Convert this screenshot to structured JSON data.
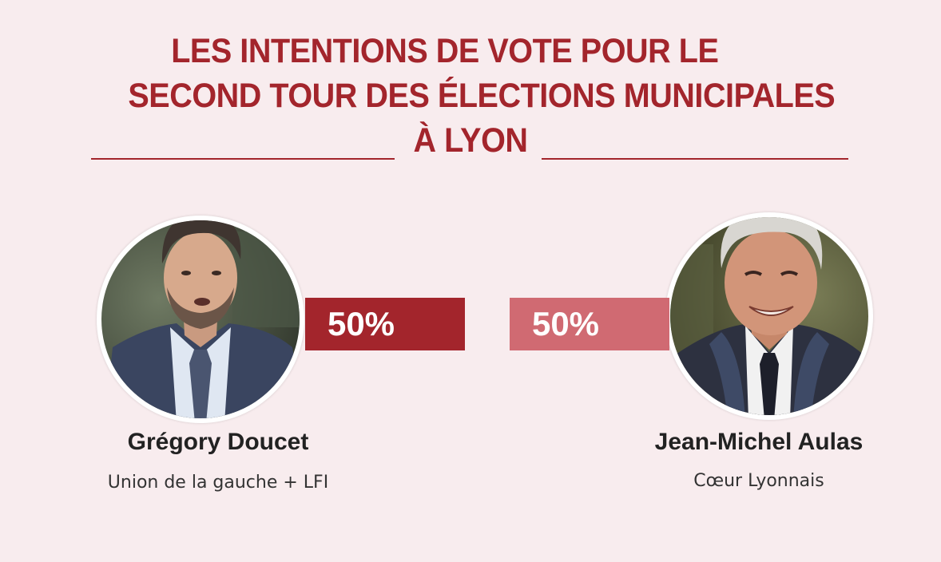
{
  "title": {
    "line1": "LES INTENTIONS DE VOTE POUR LE",
    "line2": "SECOND TOUR DES ÉLECTIONS MUNICIPALES",
    "line3": "À LYON"
  },
  "colors": {
    "background": "#f8ecee",
    "accent": "#a3252c",
    "bar_left": "#a3252c",
    "bar_right": "#d06a72"
  },
  "candidates": [
    {
      "name": "Grégory Doucet",
      "party": "Union de la gauche + LFI",
      "percent_label": "50%",
      "portrait": "portrait-photo-gregory-doucet"
    },
    {
      "name": "Jean-Michel Aulas",
      "party": "Cœur Lyonnais",
      "percent_label": "50%",
      "portrait": "portrait-photo-jean-michel-aulas"
    }
  ],
  "chart_data": {
    "type": "bar",
    "title": "LES INTENTIONS DE VOTE POUR LE SECOND TOUR DES ÉLECTIONS MUNICIPALES À LYON",
    "categories": [
      "Grégory Doucet",
      "Jean-Michel Aulas"
    ],
    "values": [
      50,
      50
    ],
    "labels": [
      "50%",
      "50%"
    ],
    "unit": "%",
    "colors": [
      "#a3252c",
      "#d06a72"
    ]
  }
}
